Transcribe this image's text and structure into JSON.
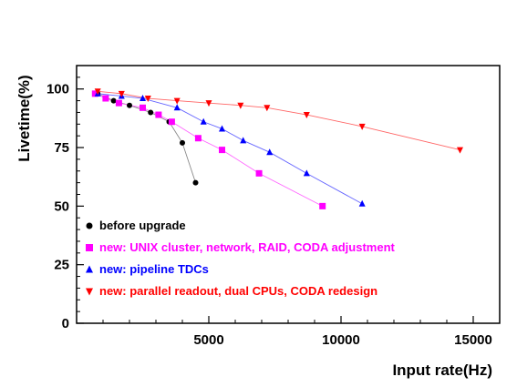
{
  "chart_data": {
    "type": "scatter",
    "title": "",
    "xlabel": "Input rate(Hz)",
    "ylabel": "Livetime(%)",
    "xlim": [
      0,
      16000
    ],
    "ylim": [
      0,
      110
    ],
    "xticks": [
      5000,
      10000,
      15000
    ],
    "yticks": [
      0,
      25,
      50,
      75,
      100
    ],
    "xtick_labels": [
      "5000",
      "10000",
      "15000"
    ],
    "ytick_labels": [
      "0",
      "25",
      "50",
      "75",
      "100"
    ],
    "grid": false,
    "legend_position": "bottom-left (inside plot)",
    "series": [
      {
        "name": "before upgrade",
        "marker": "circle",
        "color": "#000000",
        "line_color": "#888888",
        "x": [
          800,
          1400,
          2000,
          2800,
          3500,
          4000,
          4500
        ],
        "y": [
          98,
          95,
          93,
          90,
          86,
          77,
          60
        ]
      },
      {
        "name": "new: UNIX cluster, network, RAID, CODA adjustment",
        "marker": "square",
        "color": "#ff00ff",
        "line_color": "#ff66ff",
        "x": [
          700,
          1100,
          1600,
          2500,
          3100,
          3600,
          4600,
          5500,
          6900,
          9300
        ],
        "y": [
          98,
          96,
          94,
          92,
          89,
          86,
          79,
          74,
          64,
          50
        ]
      },
      {
        "name": "new: pipeline TDCs",
        "marker": "triangle-up",
        "color": "#0000ff",
        "line_color": "#6666ff",
        "x": [
          800,
          1700,
          2500,
          3800,
          4800,
          5500,
          6300,
          7300,
          8700,
          10800
        ],
        "y": [
          98,
          97,
          96,
          92,
          86,
          83,
          78,
          73,
          64,
          51
        ]
      },
      {
        "name": "new: parallel readout, dual CPUs, CODA redesign",
        "marker": "triangle-down",
        "color": "#ff0000",
        "line_color": "#ff6666",
        "x": [
          800,
          1700,
          2700,
          3800,
          5000,
          6200,
          7200,
          8700,
          10800,
          14500
        ],
        "y": [
          99,
          98,
          96,
          95,
          94,
          93,
          92,
          89,
          84,
          74
        ]
      }
    ]
  }
}
